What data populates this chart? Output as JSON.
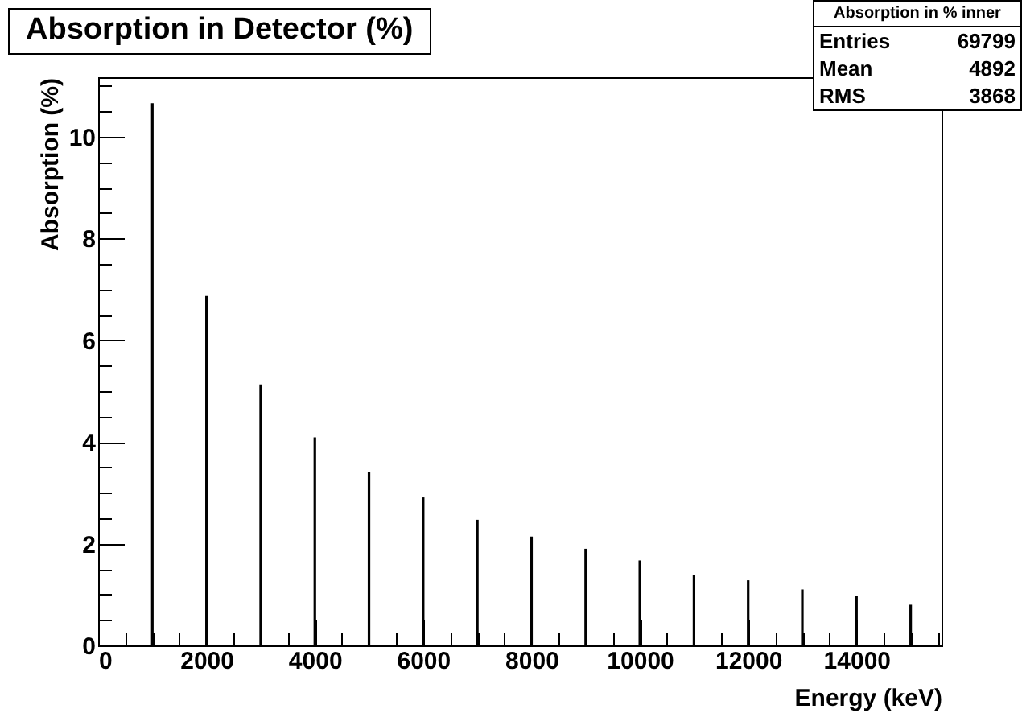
{
  "chart_data": {
    "type": "bar",
    "title": "Absorption in Detector (%)",
    "xlabel": "Energy (keV)",
    "ylabel": "Absorption (%)",
    "x": [
      1000,
      2000,
      3000,
      4000,
      5000,
      6000,
      7000,
      8000,
      9000,
      10000,
      11000,
      12000,
      13000,
      14000,
      15000
    ],
    "values": [
      10.66,
      6.87,
      5.13,
      4.09,
      3.41,
      2.91,
      2.47,
      2.14,
      1.9,
      1.67,
      1.39,
      1.28,
      1.1,
      0.98,
      0.8
    ],
    "color": "#000000",
    "xlim": [
      0,
      15570
    ],
    "ylim": [
      0,
      11.17
    ],
    "xticks": [
      0,
      {
        "value": 500,
        "label": null
      },
      {
        "value": 1000,
        "label": null
      },
      {
        "value": 1500,
        "label": null
      },
      2000,
      {
        "value": 2500,
        "label": null
      },
      {
        "value": 3000,
        "label": null
      },
      {
        "value": 3500,
        "label": null
      },
      4000,
      {
        "value": 4500,
        "label": null
      },
      {
        "value": 5000,
        "label": null
      },
      {
        "value": 5500,
        "label": null
      },
      6000,
      {
        "value": 6500,
        "label": null
      },
      {
        "value": 7000,
        "label": null
      },
      {
        "value": 7500,
        "label": null
      },
      8000,
      {
        "value": 8500,
        "label": null
      },
      {
        "value": 9000,
        "label": null
      },
      {
        "value": 9500,
        "label": null
      },
      10000,
      {
        "value": 10500,
        "label": null
      },
      {
        "value": 11000,
        "label": null
      },
      {
        "value": 11500,
        "label": null
      },
      12000,
      {
        "value": 12500,
        "label": null
      },
      {
        "value": 13000,
        "label": null
      },
      {
        "value": 13500,
        "label": null
      },
      14000,
      {
        "value": 14500,
        "label": null
      },
      {
        "value": 15000,
        "label": null
      },
      {
        "value": 15500,
        "label": null
      }
    ],
    "yticks": [
      0,
      {
        "value": 0.5,
        "label": null
      },
      {
        "value": 1,
        "label": null
      },
      {
        "value": 1.5,
        "label": null
      },
      2,
      {
        "value": 2.5,
        "label": null
      },
      {
        "value": 3,
        "label": null
      },
      {
        "value": 3.5,
        "label": null
      },
      4,
      {
        "value": 4.5,
        "label": null
      },
      {
        "value": 5,
        "label": null
      },
      {
        "value": 5.5,
        "label": null
      },
      6,
      {
        "value": 6.5,
        "label": null
      },
      {
        "value": 7,
        "label": null
      },
      {
        "value": 7.5,
        "label": null
      },
      8,
      {
        "value": 8.5,
        "label": null
      },
      {
        "value": 9,
        "label": null
      },
      {
        "value": 9.5,
        "label": null
      },
      10,
      {
        "value": 10.5,
        "label": null
      },
      {
        "value": 11,
        "label": null
      }
    ],
    "annotations": [
      "Absorption in % inner",
      "Entries",
      "69799",
      "Mean",
      "4892",
      "RMS",
      "3868"
    ]
  }
}
